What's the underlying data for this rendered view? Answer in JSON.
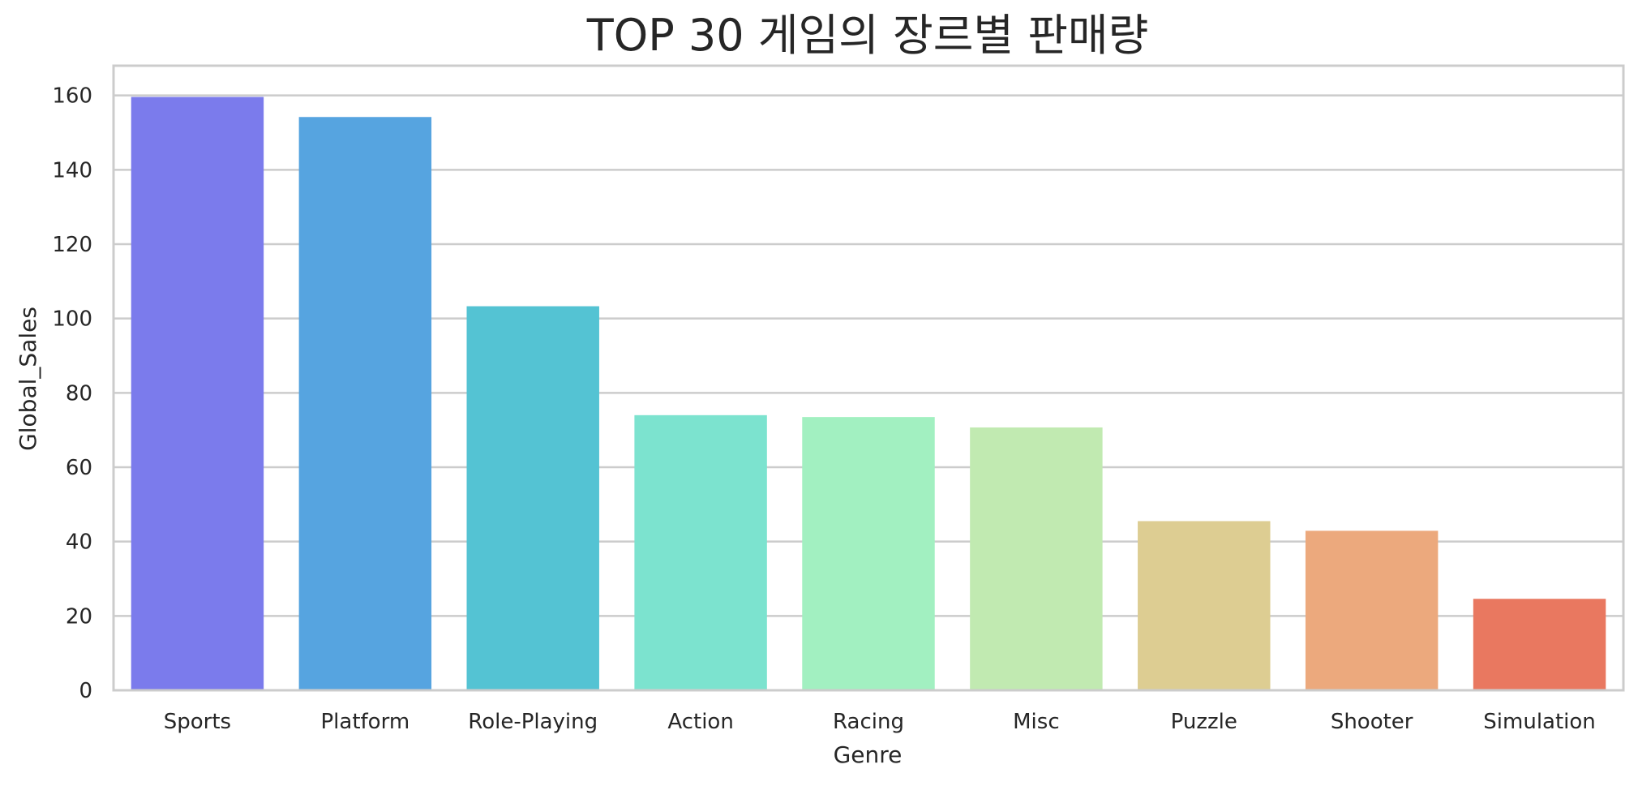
{
  "chart_data": {
    "type": "bar",
    "title": "TOP 30 게임의 장르별 판매량",
    "xlabel": "Genre",
    "ylabel": "Global_Sales",
    "categories": [
      "Sports",
      "Platform",
      "Role-Playing",
      "Action",
      "Racing",
      "Misc",
      "Puzzle",
      "Shooter",
      "Simulation"
    ],
    "values": [
      159.6,
      154.2,
      103.3,
      74.0,
      73.5,
      70.7,
      45.5,
      42.9,
      24.6
    ],
    "colors": [
      "#7b7bec",
      "#56a4e0",
      "#54c3d3",
      "#7ce3cf",
      "#a2f0c1",
      "#c1eab1",
      "#ddcd92",
      "#eca97d",
      "#e97860"
    ],
    "ylim": [
      0,
      168
    ],
    "yticks": [
      0,
      20,
      40,
      60,
      80,
      100,
      120,
      140,
      160
    ],
    "grid": "horizontal",
    "legend": "none"
  }
}
